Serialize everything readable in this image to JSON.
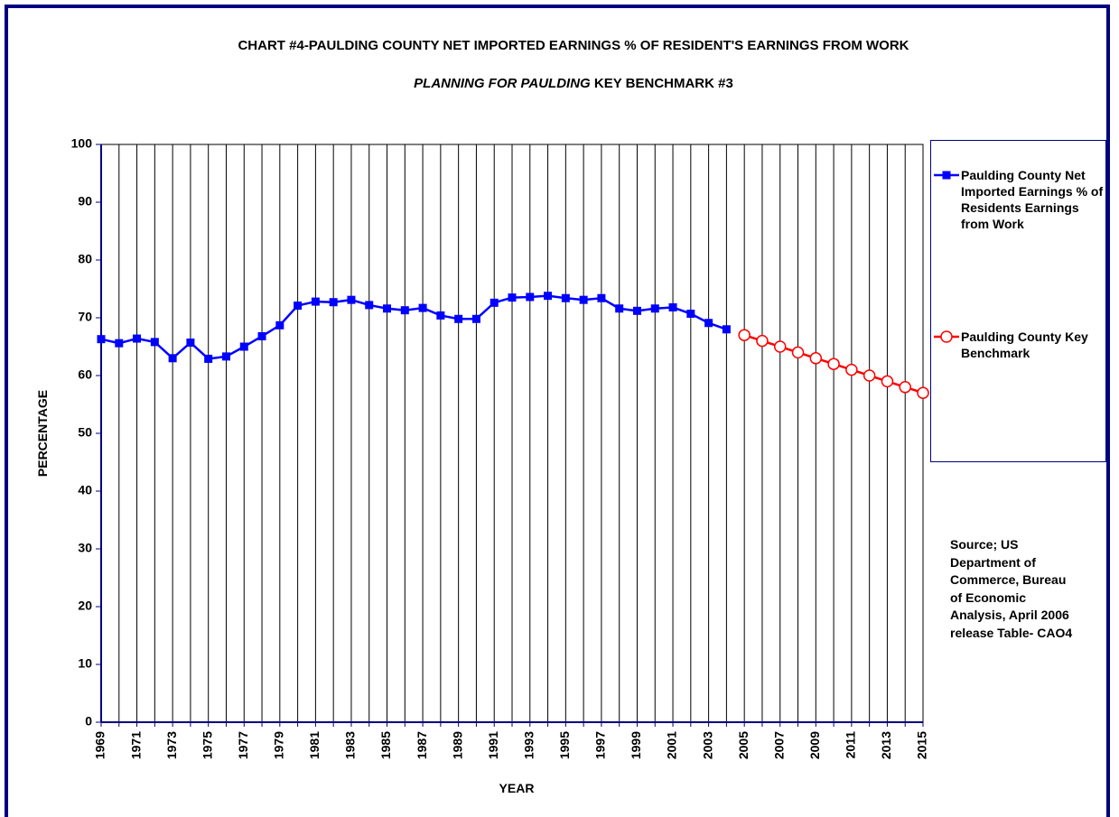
{
  "chart_data": {
    "type": "line",
    "title": "CHART #4-PAULDING COUNTY NET IMPORTED EARNINGS % OF RESIDENT'S EARNINGS FROM WORK",
    "subtitle": [
      "PLANNING FOR PAULDING",
      "KEY BENCHMARK #3"
    ],
    "xlabel": "YEAR",
    "ylabel": "PERCENTAGE",
    "annotation": "Source; US Department of Commerce, Bureau of Economic Analysis, April 2006 release Table- CAO4",
    "categories": [
      "1969",
      null,
      "1971",
      null,
      "1973",
      null,
      "1975",
      null,
      "1977",
      null,
      "1979",
      null,
      "1981",
      null,
      "1983",
      null,
      "1985",
      null,
      "1987",
      null,
      "1989",
      null,
      "1991",
      null,
      "1993",
      null,
      "1995",
      null,
      "1997",
      null,
      "1999",
      null,
      "2001",
      null,
      "2003",
      null,
      "2005",
      null,
      "2007",
      null,
      "2009",
      null,
      "2011",
      null,
      "2013",
      null,
      "2015"
    ],
    "series": [
      {
        "name": "Paulding County Net Imported Earnings % of Residents Earnings from Work",
        "color": "#0000ff",
        "marker": "square",
        "values": [
          66.3,
          65.6,
          66.4,
          65.8,
          63.0,
          65.7,
          62.9,
          63.3,
          65.0,
          66.8,
          68.7,
          72.1,
          72.8,
          72.7,
          73.1,
          72.2,
          71.6,
          71.3,
          71.7,
          70.4,
          69.8,
          69.8,
          72.6,
          73.5,
          73.6,
          73.8,
          73.4,
          73.1,
          73.4,
          71.6,
          71.2,
          71.6,
          71.8,
          70.7,
          69.1,
          68.0,
          null,
          null,
          null,
          null,
          null,
          null,
          null,
          null,
          null,
          null,
          null
        ]
      },
      {
        "name": "Paulding County Key Benchmark",
        "color": "#ff0000",
        "marker": "circle",
        "values": [
          null,
          null,
          null,
          null,
          null,
          null,
          null,
          null,
          null,
          null,
          null,
          null,
          null,
          null,
          null,
          null,
          null,
          null,
          null,
          null,
          null,
          null,
          null,
          null,
          null,
          null,
          null,
          null,
          null,
          null,
          null,
          null,
          null,
          null,
          null,
          null,
          67,
          66,
          65,
          64,
          63,
          62,
          61,
          60,
          59,
          58,
          57
        ]
      }
    ],
    "ylim": [
      0,
      100
    ],
    "yticks": [
      0,
      10,
      20,
      30,
      40,
      50,
      60,
      70,
      80,
      90,
      100
    ],
    "grid": "vertical"
  }
}
